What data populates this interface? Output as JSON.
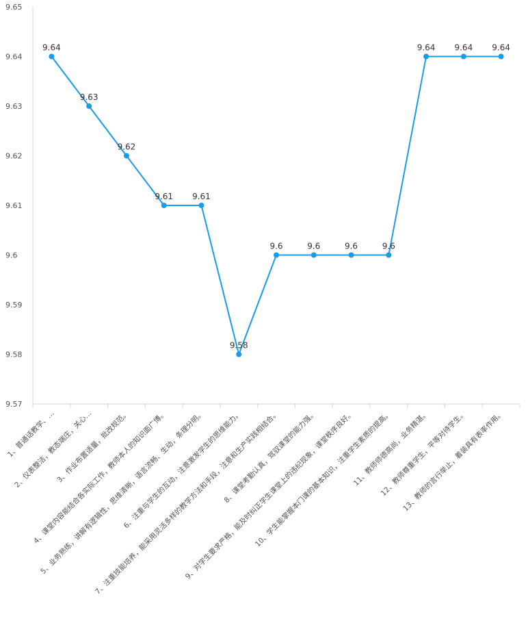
{
  "chart_data": {
    "type": "line",
    "title": "",
    "xlabel": "",
    "ylabel": "",
    "ylim": [
      9.57,
      9.65
    ],
    "y_ticks": [
      "9.65",
      "9.64",
      "9.63",
      "9.62",
      "9.61",
      "9.6",
      "9.59",
      "9.58",
      "9.57"
    ],
    "grid": false,
    "legend": "none",
    "line_color": "#1a9be6",
    "axis_color": "#c8d9ea",
    "categories": [
      "1、普通话教学、…",
      "2、仪表整洁，教态端庄，关心…",
      "3、作业布置适量，批改规范。",
      "4、课堂内容能结合各实际工作，教师本人的知识面广博。",
      "5、业务熟练，讲解有逻辑性，思维清晰，语言流畅、生动，条理分明。",
      "6、注重与学生的互动，注意激发学生的思维能力。",
      "7、注重技能培养，能采用灵活多样的教学方法和手段，注意和生产实践相结合。",
      "8、课堂考勤认真，驾驭课堂的能力强。",
      "9、对学生要求严格，能及时纠正学生课堂上的违纪现象，课堂秩序良好。",
      "10、学生能掌握本门课的基本知识，注重学生素质的提高。",
      "11、教师师德高尚，业务精湛。",
      "12、教师尊重学生，平等对待学生。",
      "13、教师的言行举止，着装具有表率作用。"
    ],
    "values": [
      9.64,
      9.63,
      9.62,
      9.61,
      9.61,
      9.58,
      9.6,
      9.6,
      9.6,
      9.6,
      9.64,
      9.64,
      9.64
    ],
    "data_labels": [
      "9.64",
      "9.63",
      "9.62",
      "9.61",
      "9.61",
      "9.58",
      "9.6",
      "9.6",
      "9.6",
      "9.6",
      "9.64",
      "9.64",
      "9.64"
    ]
  }
}
